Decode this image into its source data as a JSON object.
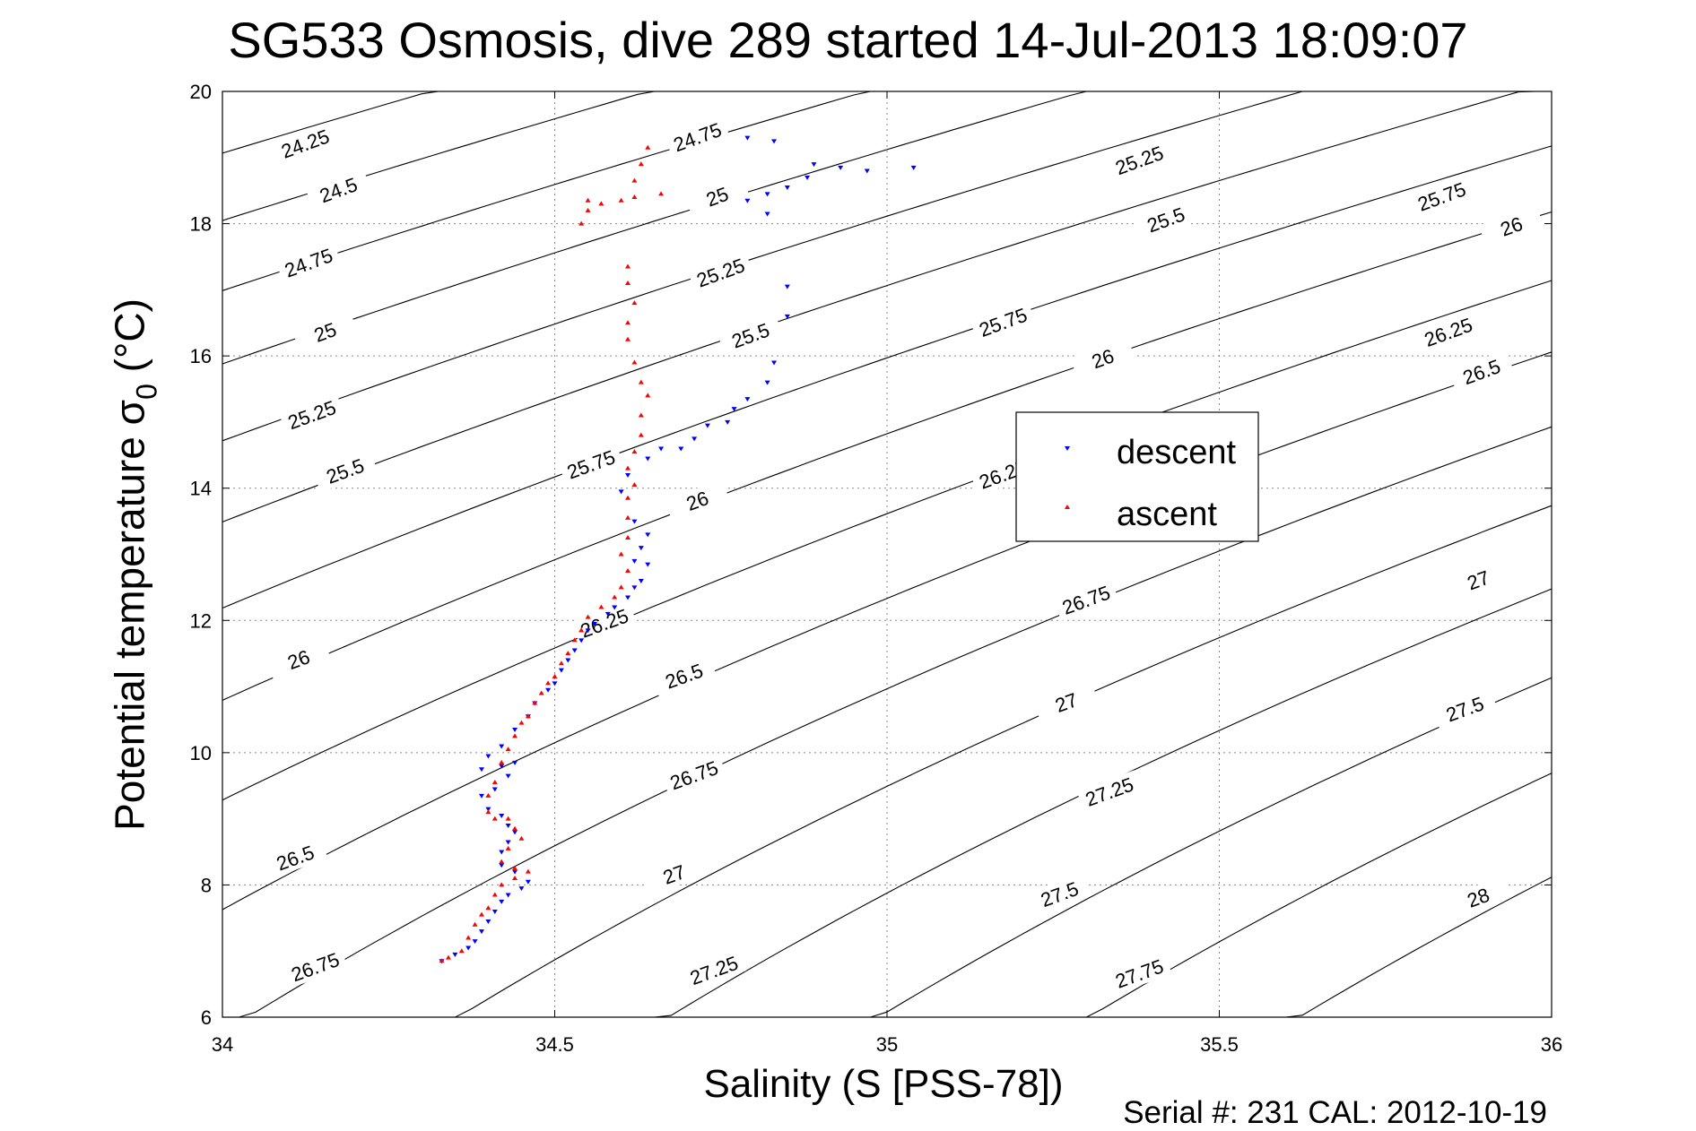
{
  "title": "SG533 Osmosis, dive 289 started 14-Jul-2013 18:09:07",
  "footer": "Serial #: 231  CAL: 2012-10-19",
  "chart_data": {
    "type": "scatter",
    "title": "SG533 Osmosis, dive 289 started 14-Jul-2013 18:09:07",
    "xlabel": "Salinity (S [PSS-78])",
    "ylabel_main": "Potential temperature σ",
    "ylabel_sub": "0",
    "ylabel_tail": " (°C)",
    "xlim": [
      34,
      36
    ],
    "ylim": [
      6,
      20
    ],
    "x_ticks": [
      34,
      34.5,
      35,
      35.5,
      36
    ],
    "x_tick_labels": [
      "34",
      "34.5",
      "35",
      "35.5",
      "36"
    ],
    "y_ticks": [
      6,
      8,
      10,
      12,
      14,
      16,
      18,
      20
    ],
    "y_tick_labels": [
      "6",
      "8",
      "10",
      "12",
      "14",
      "16",
      "18",
      "20"
    ],
    "grid": true,
    "legend_position": "center-right",
    "density_contours": [
      24.25,
      24.5,
      24.75,
      25,
      25.25,
      25.5,
      25.75,
      26,
      26.25,
      26.5,
      26.75,
      27,
      27.25,
      27.5,
      27.75,
      28
    ],
    "contour_labels": [
      {
        "text": "24.25",
        "s": 34.125,
        "t": 19.2
      },
      {
        "text": "24.5",
        "s": 34.175,
        "t": 18.5
      },
      {
        "text": "24.75",
        "s": 34.13,
        "t": 17.4
      },
      {
        "text": "25",
        "s": 34.155,
        "t": 16.35
      },
      {
        "text": "25.25",
        "s": 34.135,
        "t": 15.1
      },
      {
        "text": "25.5",
        "s": 34.185,
        "t": 14.25
      },
      {
        "text": "26",
        "s": 34.115,
        "t": 11.4
      },
      {
        "text": "26.5",
        "s": 34.11,
        "t": 8.4
      },
      {
        "text": "26.75",
        "s": 34.14,
        "t": 6.75
      },
      {
        "text": "24.75",
        "s": 34.715,
        "t": 19.3
      },
      {
        "text": "25",
        "s": 34.745,
        "t": 18.4
      },
      {
        "text": "25.25",
        "s": 34.75,
        "t": 17.25
      },
      {
        "text": "25.5",
        "s": 34.795,
        "t": 16.3
      },
      {
        "text": "25.75",
        "s": 34.555,
        "t": 14.35
      },
      {
        "text": "26",
        "s": 34.715,
        "t": 13.8
      },
      {
        "text": "26.25",
        "s": 34.575,
        "t": 11.95
      },
      {
        "text": "26.5",
        "s": 34.695,
        "t": 11.15
      },
      {
        "text": "26.75",
        "s": 34.71,
        "t": 9.65
      },
      {
        "text": "27",
        "s": 34.68,
        "t": 8.15
      },
      {
        "text": "27.25",
        "s": 34.74,
        "t": 6.7
      },
      {
        "text": "25.25",
        "s": 35.38,
        "t": 18.95
      },
      {
        "text": "25.5",
        "s": 35.42,
        "t": 18.05
      },
      {
        "text": "25.75",
        "s": 35.175,
        "t": 16.5
      },
      {
        "text": "26",
        "s": 35.325,
        "t": 15.95
      },
      {
        "text": "26.25",
        "s": 35.175,
        "t": 14.2
      },
      {
        "text": "26.75",
        "s": 35.3,
        "t": 12.3
      },
      {
        "text": "27",
        "s": 35.27,
        "t": 10.75
      },
      {
        "text": "27.25",
        "s": 35.335,
        "t": 9.4
      },
      {
        "text": "27.5",
        "s": 35.26,
        "t": 7.85
      },
      {
        "text": "27.75",
        "s": 35.38,
        "t": 6.65
      },
      {
        "text": "25.75",
        "s": 35.835,
        "t": 18.4
      },
      {
        "text": "26",
        "s": 35.94,
        "t": 17.95
      },
      {
        "text": "26.25",
        "s": 35.845,
        "t": 16.35
      },
      {
        "text": "26.5",
        "s": 35.895,
        "t": 15.75
      },
      {
        "text": "27",
        "s": 35.89,
        "t": 12.6
      },
      {
        "text": "27.5",
        "s": 35.87,
        "t": 10.65
      },
      {
        "text": "28",
        "s": 35.89,
        "t": 7.8
      }
    ],
    "series": [
      {
        "name": "descent",
        "color": "#0000ff",
        "marker": "triangle-down",
        "points": [
          [
            34.79,
            19.3
          ],
          [
            34.83,
            19.25
          ],
          [
            34.89,
            18.9
          ],
          [
            34.93,
            18.85
          ],
          [
            34.97,
            18.8
          ],
          [
            35.04,
            18.85
          ],
          [
            34.88,
            18.7
          ],
          [
            34.85,
            18.55
          ],
          [
            34.82,
            18.45
          ],
          [
            34.79,
            18.35
          ],
          [
            34.82,
            18.15
          ],
          [
            34.85,
            17.05
          ],
          [
            34.85,
            16.6
          ],
          [
            34.83,
            15.9
          ],
          [
            34.82,
            15.6
          ],
          [
            34.79,
            15.35
          ],
          [
            34.77,
            15.2
          ],
          [
            34.76,
            15.0
          ],
          [
            34.73,
            14.95
          ],
          [
            34.71,
            14.75
          ],
          [
            34.69,
            14.6
          ],
          [
            34.66,
            14.6
          ],
          [
            34.64,
            14.45
          ],
          [
            34.61,
            14.2
          ],
          [
            34.6,
            13.95
          ],
          [
            34.62,
            13.5
          ],
          [
            34.64,
            13.3
          ],
          [
            34.63,
            13.1
          ],
          [
            34.62,
            12.9
          ],
          [
            34.64,
            12.85
          ],
          [
            34.63,
            12.6
          ],
          [
            34.62,
            12.5
          ],
          [
            34.61,
            12.35
          ],
          [
            34.59,
            12.2
          ],
          [
            34.58,
            12.1
          ],
          [
            34.56,
            11.95
          ],
          [
            34.55,
            11.85
          ],
          [
            34.54,
            11.7
          ],
          [
            34.53,
            11.55
          ],
          [
            34.52,
            11.4
          ],
          [
            34.51,
            11.25
          ],
          [
            34.5,
            11.05
          ],
          [
            34.49,
            10.95
          ],
          [
            34.47,
            10.75
          ],
          [
            34.46,
            10.55
          ],
          [
            34.44,
            10.35
          ],
          [
            34.42,
            10.1
          ],
          [
            34.4,
            9.95
          ],
          [
            34.39,
            9.75
          ],
          [
            34.42,
            9.8
          ],
          [
            34.44,
            9.85
          ],
          [
            34.43,
            9.65
          ],
          [
            34.41,
            9.45
          ],
          [
            34.39,
            9.35
          ],
          [
            34.4,
            9.15
          ],
          [
            34.42,
            9.05
          ],
          [
            34.43,
            8.9
          ],
          [
            34.44,
            8.8
          ],
          [
            34.43,
            8.65
          ],
          [
            34.42,
            8.5
          ],
          [
            34.42,
            8.3
          ],
          [
            34.44,
            8.2
          ],
          [
            34.46,
            8.05
          ],
          [
            34.45,
            7.95
          ],
          [
            34.43,
            7.85
          ],
          [
            34.42,
            7.75
          ],
          [
            34.41,
            7.6
          ],
          [
            34.4,
            7.45
          ],
          [
            34.39,
            7.3
          ],
          [
            34.38,
            7.15
          ],
          [
            34.37,
            7.05
          ],
          [
            34.35,
            6.95
          ],
          [
            34.33,
            6.85
          ]
        ]
      },
      {
        "name": "ascent",
        "color": "#ff0000",
        "marker": "triangle-up",
        "points": [
          [
            34.64,
            19.15
          ],
          [
            34.63,
            18.9
          ],
          [
            34.62,
            18.65
          ],
          [
            34.55,
            18.35
          ],
          [
            34.57,
            18.3
          ],
          [
            34.6,
            18.35
          ],
          [
            34.62,
            18.4
          ],
          [
            34.66,
            18.45
          ],
          [
            34.55,
            18.2
          ],
          [
            34.54,
            18.0
          ],
          [
            34.61,
            17.35
          ],
          [
            34.61,
            17.1
          ],
          [
            34.62,
            16.8
          ],
          [
            34.61,
            16.5
          ],
          [
            34.61,
            16.25
          ],
          [
            34.62,
            15.9
          ],
          [
            34.63,
            15.6
          ],
          [
            34.64,
            15.4
          ],
          [
            34.63,
            15.1
          ],
          [
            34.63,
            14.8
          ],
          [
            34.62,
            14.55
          ],
          [
            34.61,
            14.3
          ],
          [
            34.62,
            14.05
          ],
          [
            34.61,
            13.85
          ],
          [
            34.61,
            13.55
          ],
          [
            34.61,
            13.25
          ],
          [
            34.6,
            13.0
          ],
          [
            34.61,
            12.75
          ],
          [
            34.6,
            12.5
          ],
          [
            34.59,
            12.35
          ],
          [
            34.57,
            12.2
          ],
          [
            34.55,
            12.05
          ],
          [
            34.54,
            11.85
          ],
          [
            34.53,
            11.7
          ],
          [
            34.52,
            11.5
          ],
          [
            34.51,
            11.35
          ],
          [
            34.5,
            11.15
          ],
          [
            34.49,
            11.05
          ],
          [
            34.48,
            10.9
          ],
          [
            34.47,
            10.75
          ],
          [
            34.46,
            10.55
          ],
          [
            34.45,
            10.45
          ],
          [
            34.44,
            10.25
          ],
          [
            34.43,
            10.05
          ],
          [
            34.42,
            9.85
          ],
          [
            34.41,
            9.55
          ],
          [
            34.4,
            9.35
          ],
          [
            34.4,
            9.1
          ],
          [
            34.41,
            9.0
          ],
          [
            34.43,
            9.0
          ],
          [
            34.44,
            8.85
          ],
          [
            34.45,
            8.7
          ],
          [
            34.43,
            8.55
          ],
          [
            34.42,
            8.35
          ],
          [
            34.44,
            8.25
          ],
          [
            34.46,
            8.2
          ],
          [
            34.44,
            8.1
          ],
          [
            34.42,
            8.0
          ],
          [
            34.41,
            7.85
          ],
          [
            34.4,
            7.65
          ],
          [
            34.39,
            7.55
          ],
          [
            34.38,
            7.4
          ],
          [
            34.37,
            7.2
          ],
          [
            34.36,
            7.0
          ],
          [
            34.34,
            6.9
          ],
          [
            34.33,
            6.85
          ]
        ]
      }
    ]
  }
}
